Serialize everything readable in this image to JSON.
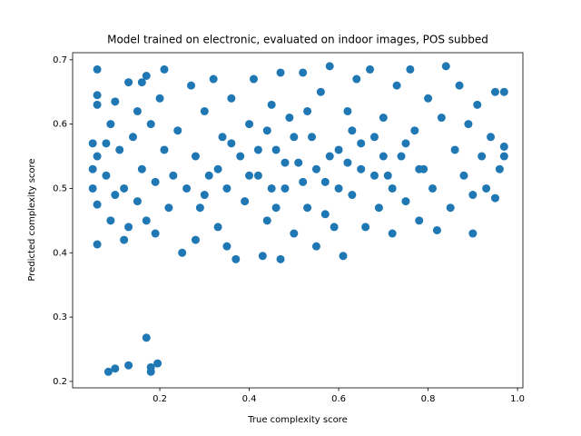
{
  "chart_data": {
    "type": "scatter",
    "title": "Model trained on electronic, evaluated on indoor images, POS subbed",
    "x_label": "True complexity score",
    "y_label": "Predicted complexity score",
    "color": "#1f77b4",
    "xlim": [
      0.005,
      1.012
    ],
    "ylim": [
      0.19,
      0.711
    ],
    "xticks": [
      0.2,
      0.4,
      0.6,
      0.8,
      {
        "value": 1,
        "label": "1.0"
      }
    ],
    "yticks": [
      0.2,
      0.3,
      0.4,
      0.5,
      0.6,
      0.7
    ],
    "x": [
      0.05,
      0.05,
      0.05,
      0.06,
      0.06,
      0.06,
      0.06,
      0.06,
      0.06,
      0.08,
      0.08,
      0.09,
      0.09,
      0.1,
      0.1,
      0.11,
      0.12,
      0.12,
      0.13,
      0.13,
      0.14,
      0.15,
      0.15,
      0.16,
      0.16,
      0.17,
      0.17,
      0.18,
      0.19,
      0.19,
      0.2,
      0.21,
      0.21,
      0.22,
      0.23,
      0.24,
      0.25,
      0.26,
      0.27,
      0.28,
      0.28,
      0.29,
      0.3,
      0.31,
      0.32,
      0.33,
      0.34,
      0.35,
      0.35,
      0.36,
      0.37,
      0.38,
      0.39,
      0.4,
      0.41,
      0.42,
      0.43,
      0.44,
      0.45,
      0.46,
      0.47,
      0.47,
      0.48,
      0.49,
      0.5,
      0.51,
      0.52,
      0.53,
      0.54,
      0.55,
      0.56,
      0.57,
      0.58,
      0.59,
      0.6,
      0.61,
      0.62,
      0.63,
      0.64,
      0.65,
      0.66,
      0.67,
      0.68,
      0.69,
      0.7,
      0.71,
      0.72,
      0.73,
      0.74,
      0.75,
      0.76,
      0.77,
      0.78,
      0.79,
      0.8,
      0.81,
      0.82,
      0.83,
      0.84,
      0.85,
      0.86,
      0.87,
      0.88,
      0.89,
      0.9,
      0.9,
      0.91,
      0.92,
      0.93,
      0.94,
      0.95,
      0.95,
      0.96,
      0.97,
      0.97,
      0.97,
      0.4,
      0.42,
      0.45,
      0.48,
      0.5,
      0.52,
      0.55,
      0.58,
      0.6,
      0.62,
      0.65,
      0.68,
      0.7,
      0.72,
      0.75,
      0.78,
      0.33,
      0.36,
      0.3,
      0.44,
      0.53,
      0.57,
      0.63,
      0.46,
      0.085,
      0.1,
      0.13,
      0.17,
      0.18,
      0.18,
      0.195
    ],
    "values": [
      0.57,
      0.53,
      0.5,
      0.685,
      0.645,
      0.63,
      0.55,
      0.413,
      0.475,
      0.52,
      0.57,
      0.45,
      0.6,
      0.635,
      0.49,
      0.56,
      0.42,
      0.5,
      0.665,
      0.44,
      0.58,
      0.62,
      0.48,
      0.665,
      0.53,
      0.675,
      0.45,
      0.6,
      0.51,
      0.43,
      0.64,
      0.685,
      0.56,
      0.47,
      0.52,
      0.59,
      0.4,
      0.5,
      0.66,
      0.55,
      0.42,
      0.47,
      0.62,
      0.52,
      0.67,
      0.44,
      0.58,
      0.5,
      0.41,
      0.64,
      0.39,
      0.55,
      0.48,
      0.6,
      0.67,
      0.52,
      0.395,
      0.45,
      0.63,
      0.56,
      0.39,
      0.68,
      0.5,
      0.61,
      0.43,
      0.54,
      0.68,
      0.47,
      0.58,
      0.41,
      0.65,
      0.51,
      0.69,
      0.44,
      0.56,
      0.395,
      0.62,
      0.49,
      0.67,
      0.53,
      0.44,
      0.685,
      0.58,
      0.47,
      0.61,
      0.52,
      0.43,
      0.66,
      0.55,
      0.48,
      0.685,
      0.59,
      0.45,
      0.53,
      0.64,
      0.5,
      0.435,
      0.61,
      0.69,
      0.47,
      0.56,
      0.66,
      0.52,
      0.6,
      0.43,
      0.49,
      0.63,
      0.55,
      0.5,
      0.58,
      0.65,
      0.485,
      0.53,
      0.65,
      0.565,
      0.55,
      0.52,
      0.56,
      0.5,
      0.54,
      0.58,
      0.51,
      0.53,
      0.55,
      0.5,
      0.54,
      0.57,
      0.52,
      0.55,
      0.5,
      0.57,
      0.53,
      0.53,
      0.57,
      0.49,
      0.59,
      0.62,
      0.46,
      0.59,
      0.47,
      0.215,
      0.22,
      0.225,
      0.268,
      0.222,
      0.215,
      0.228
    ]
  }
}
